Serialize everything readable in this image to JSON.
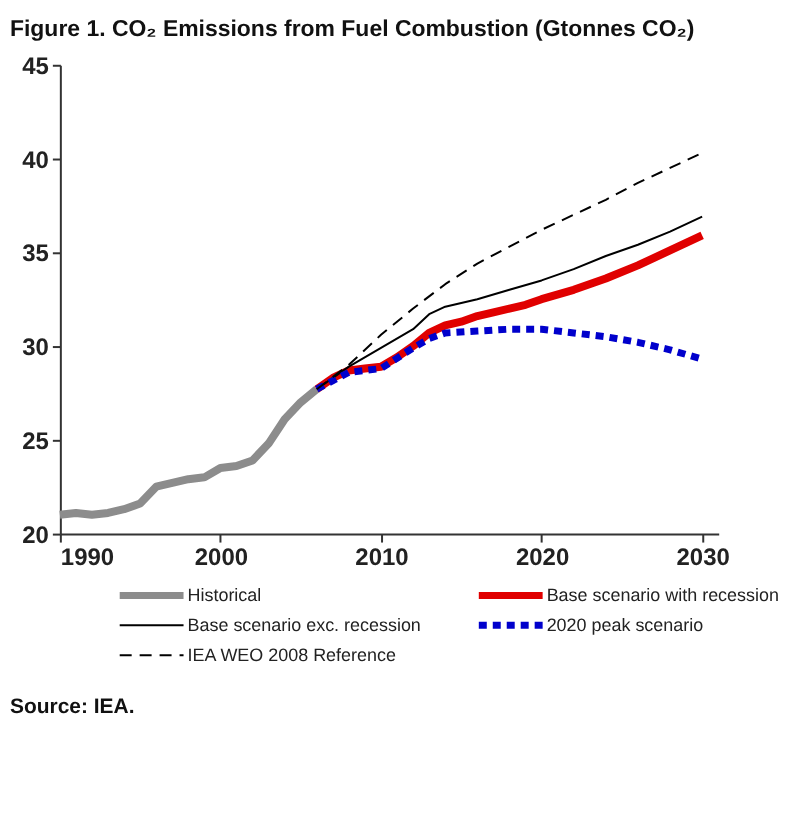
{
  "chart_data": {
    "type": "line",
    "title": "Figure 1. CO₂ Emissions from Fuel Combustion (Gtonnes CO₂)",
    "xlim": [
      1990,
      2031
    ],
    "xticks": [
      1990,
      2000,
      2010,
      2020,
      2030
    ],
    "ylim": [
      20,
      45
    ],
    "yticks": [
      20,
      25,
      30,
      35,
      40,
      45
    ],
    "grid": false,
    "legend": "bottom",
    "marker": "none",
    "annotations": [
      "Source: IEA."
    ],
    "series": [
      {
        "name": "Historical",
        "color": "#8c8c8c",
        "line_style": "solid",
        "x": [
          1990,
          1991,
          1992,
          1993,
          1994,
          1995,
          1996,
          1997,
          1998,
          1999,
          2000,
          2001,
          2002,
          2003,
          2004,
          2005,
          2006
        ],
        "values": [
          21.0,
          21.1,
          21.0,
          21.1,
          21.3,
          21.6,
          22.5,
          22.7,
          22.9,
          23.0,
          23.5,
          23.6,
          23.9,
          24.8,
          26.1,
          27.0,
          27.7
        ]
      },
      {
        "name": "Base scenario with recession",
        "color": "#e00000",
        "line_style": "solid",
        "x": [
          2006,
          2007,
          2008,
          2009,
          2010,
          2011,
          2012,
          2013,
          2014,
          2015,
          2016,
          2017,
          2018,
          2019,
          2020,
          2022,
          2024,
          2026,
          2028,
          2030
        ],
        "values": [
          27.7,
          28.3,
          28.7,
          28.8,
          28.9,
          29.4,
          30.0,
          30.7,
          31.1,
          31.3,
          31.6,
          31.8,
          32.0,
          32.2,
          32.5,
          33.0,
          33.6,
          34.3,
          35.1,
          35.9
        ]
      },
      {
        "name": "Base scenario exc. recession",
        "color": "#000000",
        "line_style": "solid",
        "x": [
          2006,
          2008,
          2010,
          2012,
          2013,
          2014,
          2016,
          2018,
          2020,
          2022,
          2024,
          2026,
          2028,
          2030
        ],
        "values": [
          27.7,
          28.9,
          29.9,
          30.9,
          31.7,
          32.1,
          32.5,
          33.0,
          33.5,
          34.1,
          34.8,
          35.4,
          36.1,
          36.9
        ]
      },
      {
        "name": "2020 peak scenario",
        "color": "#0000cc",
        "line_style": "dashed",
        "x": [
          2006,
          2008,
          2010,
          2012,
          2013,
          2014,
          2016,
          2018,
          2020,
          2022,
          2024,
          2026,
          2028,
          2030
        ],
        "values": [
          27.7,
          28.6,
          28.8,
          29.9,
          30.4,
          30.7,
          30.8,
          30.9,
          30.9,
          30.7,
          30.5,
          30.2,
          29.8,
          29.3
        ]
      },
      {
        "name": "IEA WEO 2008 Reference",
        "color": "#000000",
        "line_style": "dashed",
        "x": [
          2006,
          2008,
          2010,
          2012,
          2014,
          2016,
          2018,
          2020,
          2022,
          2024,
          2026,
          2028,
          2030
        ],
        "values": [
          27.7,
          29.0,
          30.6,
          32.0,
          33.3,
          34.4,
          35.3,
          36.2,
          37.0,
          37.8,
          38.7,
          39.5,
          40.3
        ]
      }
    ]
  }
}
